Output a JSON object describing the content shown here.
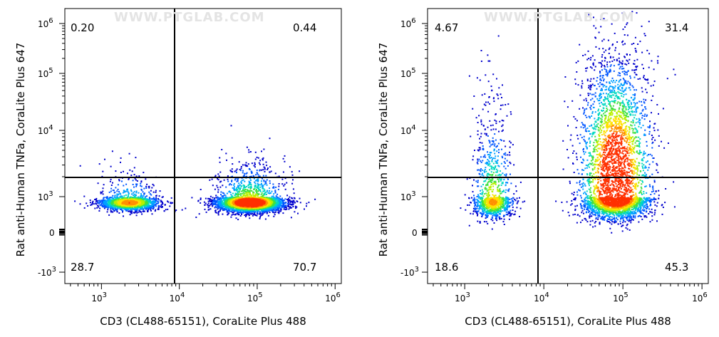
{
  "watermark": "WWW.PTGLAB.COM",
  "chart_data": [
    {
      "type": "scatter",
      "title": "",
      "xlabel": "CD3 (CL488-65151), CoraLite Plus 488",
      "ylabel": "Rat anti-Human TNFa, CoraLite Plus 647",
      "x_ticks": [
        "10^3",
        "10^4",
        "10^5",
        "10^6"
      ],
      "y_ticks": [
        "-10^3",
        "0",
        "10^3",
        "10^4",
        "10^5",
        "10^6"
      ],
      "gate": {
        "x": 10000,
        "y": 2000
      },
      "quadrants": {
        "upper_left": "0.20",
        "upper_right": "0.44",
        "lower_left": "28.7",
        "lower_right": "70.7"
      },
      "populations": [
        {
          "name_hidden": true,
          "x_center_log": 3.35,
          "y_center_log": 2.55,
          "x_spread": 0.2,
          "y_spread": 0.35,
          "weight": 0.29
        },
        {
          "name_hidden": true,
          "x_center_log": 4.9,
          "y_center_log": 2.55,
          "x_spread": 0.22,
          "y_spread": 0.4,
          "weight": 0.71
        }
      ]
    },
    {
      "type": "scatter",
      "title": "",
      "xlabel": "CD3 (CL488-65151), CoraLite Plus 488",
      "ylabel": "Rat anti-Human TNFa, CoraLite Plus 647",
      "x_ticks": [
        "10^3",
        "10^4",
        "10^5",
        "10^6"
      ],
      "y_ticks": [
        "-10^3",
        "0",
        "10^3",
        "10^4",
        "10^5",
        "10^6"
      ],
      "gate": {
        "x": 10000,
        "y": 2000
      },
      "quadrants": {
        "upper_left": "4.67",
        "upper_right": "31.4",
        "lower_left": "18.6",
        "lower_right": "45.3"
      },
      "populations": [
        {
          "name_hidden": true,
          "x_center_log": 3.35,
          "y_center_log": 2.6,
          "x_spread": 0.13,
          "y_spread": 0.7,
          "weight": 0.23
        },
        {
          "name_hidden": true,
          "x_center_log": 4.9,
          "y_center_log": 3.1,
          "x_spread": 0.22,
          "y_spread": 0.95,
          "weight": 0.77
        }
      ]
    }
  ]
}
